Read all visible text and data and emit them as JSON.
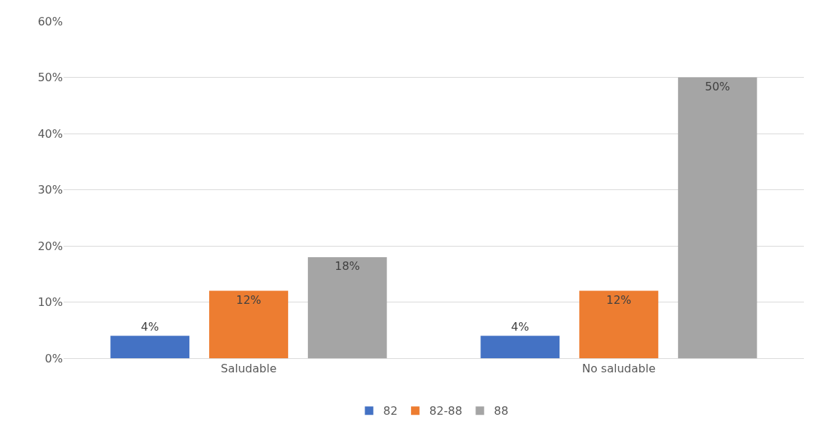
{
  "chart_data": {
    "type": "bar",
    "categories": [
      "Saludable",
      "No saludable"
    ],
    "series": [
      {
        "name": "82",
        "color": "#4472c4",
        "values": [
          4,
          4
        ],
        "value_labels": [
          "4%",
          "4%"
        ]
      },
      {
        "name": "82-88",
        "color": "#ed7d31",
        "values": [
          12,
          12
        ],
        "value_labels": [
          "12%",
          "12%"
        ]
      },
      {
        "name": "88",
        "color": "#a5a5a5",
        "values": [
          18,
          50
        ],
        "value_labels": [
          "18%",
          "50%"
        ]
      }
    ],
    "ylim": [
      0,
      60
    ],
    "yticks": [
      {
        "value": 0,
        "label": "0%"
      },
      {
        "value": 10,
        "label": "10%"
      },
      {
        "value": 20,
        "label": "20%"
      },
      {
        "value": 30,
        "label": "30%"
      },
      {
        "value": 40,
        "label": "40%"
      },
      {
        "value": 50,
        "label": "50%"
      },
      {
        "value": 60,
        "label": "60%"
      }
    ],
    "grid": "y",
    "legend": "bottom"
  }
}
